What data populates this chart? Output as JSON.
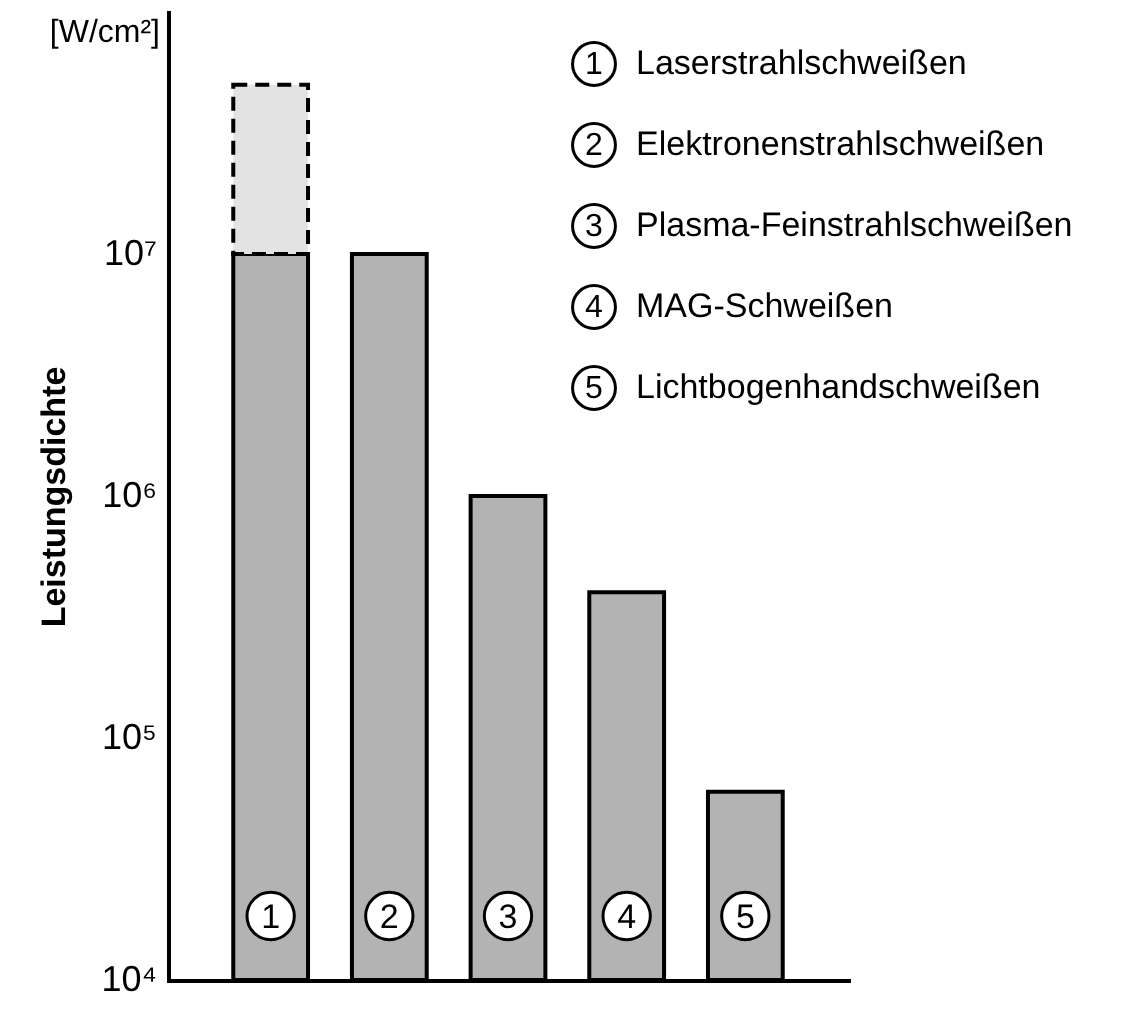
{
  "chart_data": {
    "type": "bar",
    "ylabel": "Leistungsdichte",
    "categories": [
      "1",
      "2",
      "3",
      "4",
      "5"
    ],
    "series": [
      {
        "color": "#b3b3b3",
        "line_style": "solid",
        "values": [
          10000000,
          10000000,
          1000000,
          400000,
          60000
        ]
      },
      {
        "color": "#e3e3e3",
        "line_style": "dashed",
        "values": [
          40000000,
          null,
          null,
          null,
          null
        ]
      }
    ],
    "stacked": true,
    "log": true,
    "ylim": [
      10000,
      100000000
    ],
    "yticks": [
      {
        "value": 10000,
        "label": "10⁴"
      },
      {
        "value": 100000,
        "label": "10⁵"
      },
      {
        "value": 1000000,
        "label": "10⁶"
      },
      {
        "value": 10000000,
        "label": "10⁷"
      }
    ],
    "grid": false,
    "annotations": [
      "[W/cm²]",
      "Laserstrahlschweißen",
      "Elektronenstrahlschweißen",
      "Plasma-Feinstrahlschweißen",
      "MAG-Schweißen",
      "Lichtbogenhandschweißen"
    ]
  }
}
